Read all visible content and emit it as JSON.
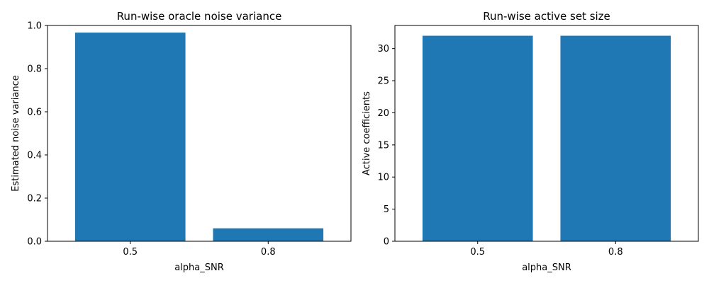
{
  "chart_data": [
    {
      "type": "bar",
      "title": "Run-wise oracle noise variance",
      "xlabel": "alpha_SNR",
      "ylabel": "Estimated noise variance",
      "categories": [
        "0.5",
        "0.8"
      ],
      "values": [
        0.967,
        0.06
      ],
      "ylim": [
        0,
        1.0
      ],
      "yticks": [
        "0.0",
        "0.2",
        "0.4",
        "0.6",
        "0.8",
        "1.0"
      ],
      "grid": false,
      "bar_color": "#1f77b4"
    },
    {
      "type": "bar",
      "title": "Run-wise active set size",
      "xlabel": "alpha_SNR",
      "ylabel": "Active coefficients",
      "categories": [
        "0.5",
        "0.8"
      ],
      "values": [
        32,
        32
      ],
      "ylim": [
        0,
        33.6
      ],
      "yticks": [
        "0",
        "5",
        "10",
        "15",
        "20",
        "25",
        "30"
      ],
      "grid": false,
      "bar_color": "#1f77b4"
    }
  ]
}
